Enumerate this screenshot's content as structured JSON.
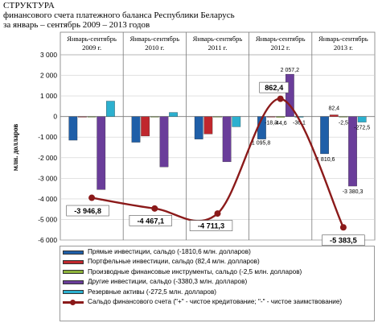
{
  "title": {
    "line1": "СТРУКТУРА",
    "line2": "финансового счета платежного баланса Республики Беларусь",
    "line3": "за январь – сентябрь 2009 – 2013 годов"
  },
  "colors": {
    "direct": "#1f5fa8",
    "portfolio": "#c0272d",
    "derivatives": "#8db33a",
    "other": "#6a3d9a",
    "reserve": "#2cb0cf",
    "balance": "#8b1a1a"
  },
  "chart_data": {
    "type": "bar",
    "title": "",
    "ylabel": "млн. долларов",
    "ylim": [
      -6000,
      3000
    ],
    "yticks": [
      3000,
      2000,
      1000,
      0,
      -1000,
      -2000,
      -3000,
      -4000,
      -5000,
      -6000
    ],
    "ytick_labels": [
      "3 000",
      "2 000",
      "1 000",
      "0",
      "-1 000",
      "-2 000",
      "-3 000",
      "-4 000",
      "-5 000",
      "-6 000"
    ],
    "grid": true,
    "categories": [
      {
        "line1": "Январь-сентябрь",
        "line2": "2009 г."
      },
      {
        "line1": "Январь-сентябрь",
        "line2": "2010 г."
      },
      {
        "line1": "Январь-сентябрь",
        "line2": "2011 г."
      },
      {
        "line1": "Январь-сентябрь",
        "line2": "2012 г."
      },
      {
        "line1": "Январь-сентябрь",
        "line2": "2013 г."
      }
    ],
    "series": [
      {
        "name": "Прямые инвестиции, сальдо (-1810,6 млн. долларов)",
        "key": "direct",
        "values": [
          -1150,
          -1250,
          -1100,
          -1095.8,
          -1810.6
        ]
      },
      {
        "name": "Портфельные инвестиции, сальдо (82,4 млн. долларов)",
        "key": "portfolio",
        "values": [
          -30,
          -950,
          -850,
          -18.3,
          82.4
        ]
      },
      {
        "name": "Производные финансовые инструменты, сальдо (-2,5 млн. долларов)",
        "key": "derivatives",
        "values": [
          -20,
          -20,
          -10,
          -44.6,
          -2.5
        ]
      },
      {
        "name": "Другие инвестиции, сальдо (-3380,3 млн. долларов)",
        "key": "other",
        "values": [
          -3550,
          -2450,
          -2200,
          2057.2,
          -3380.3
        ]
      },
      {
        "name": "Резервные активы (-272,5 млн. долларов)",
        "key": "reserve",
        "values": [
          750,
          200,
          -500,
          -36.1,
          -272.5
        ]
      }
    ],
    "bar_labels": [
      {
        "cat": 3,
        "series": 0,
        "text": "-1 095,8"
      },
      {
        "cat": 3,
        "series": 1,
        "text": "-18,3"
      },
      {
        "cat": 3,
        "series": 2,
        "text": "-44,6"
      },
      {
        "cat": 3,
        "series": 3,
        "text": "2 057,2"
      },
      {
        "cat": 3,
        "series": 4,
        "text": "-36,1"
      },
      {
        "cat": 4,
        "series": 0,
        "text": "-1 810,6"
      },
      {
        "cat": 4,
        "series": 1,
        "text": "82,4"
      },
      {
        "cat": 4,
        "series": 2,
        "text": "-2,5"
      },
      {
        "cat": 4,
        "series": 3,
        "text": "-3 380,3"
      },
      {
        "cat": 4,
        "series": 4,
        "text": "-272,5"
      }
    ],
    "line": {
      "name": "Сальдо финансового счета (\"+\" - чистое кредитование; \"-\" - чистое заимствование)",
      "values": [
        -3946.8,
        -4467.1,
        -4711.3,
        862.4,
        -5383.5
      ],
      "labels": [
        "-3 946,8",
        "-4 467,1",
        "-4 711,3",
        "862,4",
        "-5 383,5"
      ]
    }
  }
}
